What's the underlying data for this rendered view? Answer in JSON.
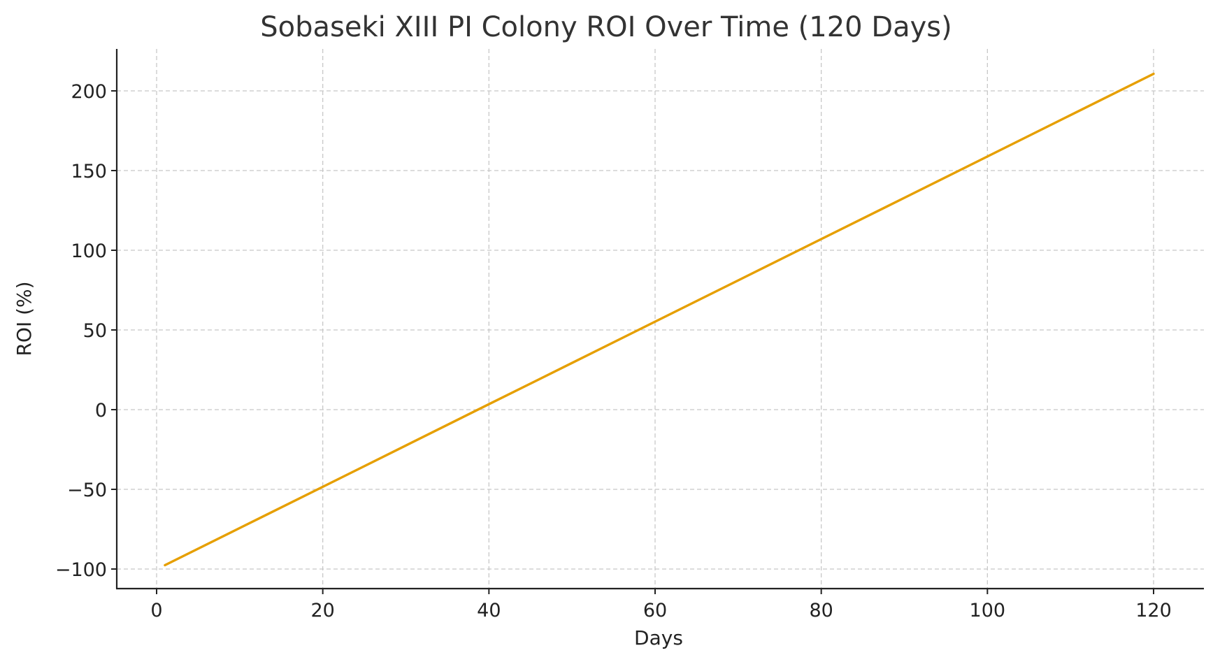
{
  "chart_data": {
    "type": "line",
    "title": "Sobaseki XIII PI Colony ROI Over Time (120 Days)",
    "xlabel": "Days",
    "ylabel": "ROI (%)",
    "xlim": [
      -5.5,
      125.5
    ],
    "ylim": [
      -112,
      226
    ],
    "x_ticks": [
      0,
      20,
      40,
      60,
      80,
      100,
      120
    ],
    "y_ticks": [
      -100,
      -50,
      0,
      50,
      100,
      150,
      200
    ],
    "x_tick_labels": [
      "0",
      "20",
      "40",
      "60",
      "80",
      "100",
      "120"
    ],
    "y_tick_labels": [
      "−100",
      "−50",
      "0",
      "50",
      "100",
      "150",
      "200"
    ],
    "grid": true,
    "legend": null,
    "series": [
      {
        "name": "ROI",
        "color": "#E69F00",
        "x": [
          1,
          10,
          20,
          30,
          40,
          50,
          60,
          70,
          80,
          90,
          100,
          110,
          120
        ],
        "values": [
          -97.6,
          -74.3,
          -48.4,
          -22.5,
          3.4,
          29.3,
          55.2,
          81.1,
          107.0,
          132.9,
          158.8,
          184.8,
          210.7
        ]
      }
    ]
  }
}
